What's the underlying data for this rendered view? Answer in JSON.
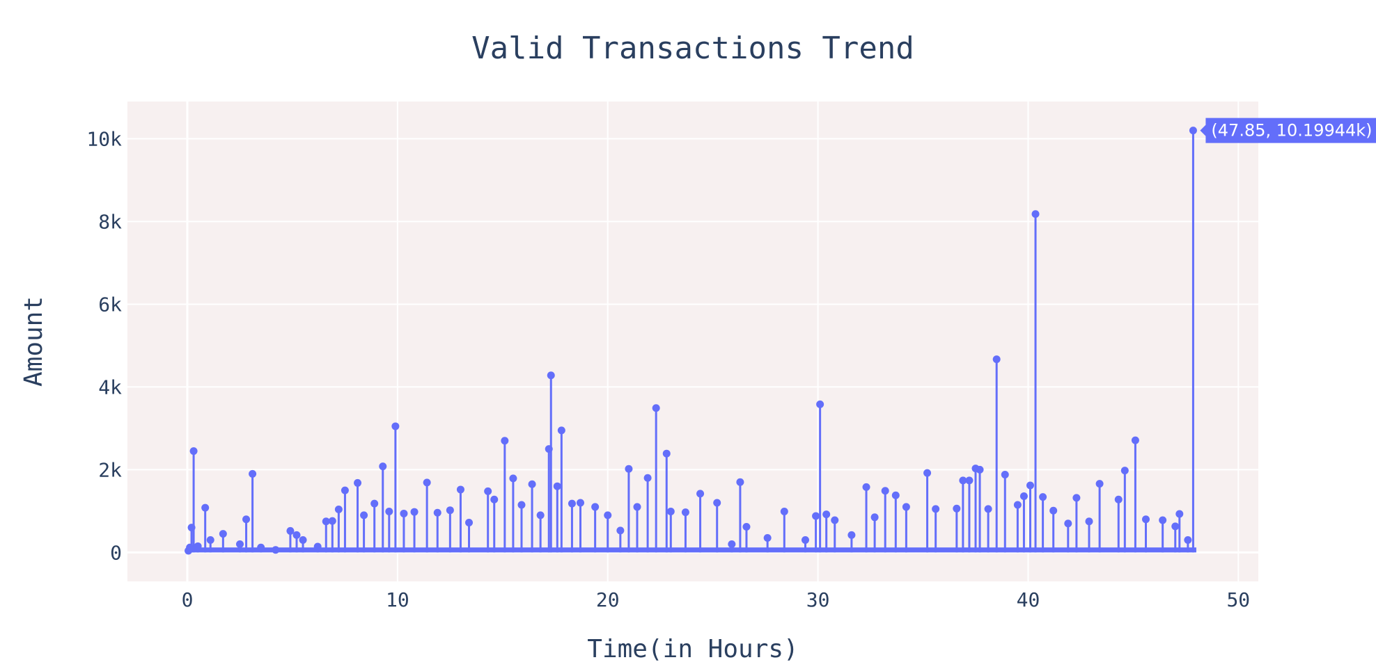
{
  "chart_data": {
    "type": "line",
    "title": "Valid Transactions Trend",
    "xlabel": "Time(in Hours)",
    "ylabel": "Amount",
    "xlim": [
      -2.85,
      50.95
    ],
    "ylim": [
      -700,
      10900
    ],
    "xticks": [
      0,
      10,
      20,
      30,
      40,
      50
    ],
    "xtick_labels": [
      "0",
      "10",
      "20",
      "30",
      "40",
      "50"
    ],
    "yticks": [
      0,
      2000,
      4000,
      6000,
      8000,
      10000
    ],
    "ytick_labels": [
      "0",
      "2k",
      "4k",
      "6k",
      "8k",
      "10k"
    ],
    "grid": true,
    "mode": "lines+markers",
    "series": [
      {
        "color": "#636efa",
        "peaks": [
          [
            0.05,
            40
          ],
          [
            0.12,
            120
          ],
          [
            0.2,
            600
          ],
          [
            0.3,
            2450
          ],
          [
            0.5,
            150
          ],
          [
            0.85,
            1080
          ],
          [
            1.1,
            300
          ],
          [
            1.7,
            450
          ],
          [
            2.5,
            200
          ],
          [
            2.8,
            800
          ],
          [
            3.1,
            1900
          ],
          [
            3.5,
            120
          ],
          [
            4.2,
            60
          ],
          [
            4.9,
            520
          ],
          [
            5.2,
            420
          ],
          [
            5.5,
            300
          ],
          [
            6.2,
            140
          ],
          [
            6.6,
            750
          ],
          [
            6.9,
            760
          ],
          [
            7.2,
            1040
          ],
          [
            7.5,
            1500
          ],
          [
            8.1,
            1680
          ],
          [
            8.4,
            900
          ],
          [
            8.9,
            1180
          ],
          [
            9.3,
            2080
          ],
          [
            9.6,
            990
          ],
          [
            9.9,
            3050
          ],
          [
            10.3,
            940
          ],
          [
            10.8,
            980
          ],
          [
            11.4,
            1690
          ],
          [
            11.9,
            960
          ],
          [
            12.5,
            1020
          ],
          [
            13.0,
            1520
          ],
          [
            13.4,
            720
          ],
          [
            14.3,
            1480
          ],
          [
            14.6,
            1280
          ],
          [
            15.1,
            2700
          ],
          [
            15.5,
            1790
          ],
          [
            15.9,
            1150
          ],
          [
            16.4,
            1650
          ],
          [
            16.8,
            900
          ],
          [
            17.2,
            2500
          ],
          [
            17.3,
            4280
          ],
          [
            17.6,
            1600
          ],
          [
            17.8,
            2950
          ],
          [
            18.3,
            1180
          ],
          [
            18.7,
            1200
          ],
          [
            19.4,
            1100
          ],
          [
            20.0,
            900
          ],
          [
            20.6,
            530
          ],
          [
            21.0,
            2020
          ],
          [
            21.4,
            1100
          ],
          [
            21.9,
            1800
          ],
          [
            22.3,
            3490
          ],
          [
            22.8,
            2390
          ],
          [
            23.0,
            990
          ],
          [
            23.7,
            970
          ],
          [
            24.4,
            1420
          ],
          [
            25.2,
            1200
          ],
          [
            25.9,
            200
          ],
          [
            26.3,
            1700
          ],
          [
            26.6,
            620
          ],
          [
            27.6,
            350
          ],
          [
            28.4,
            990
          ],
          [
            29.4,
            300
          ],
          [
            29.9,
            880
          ],
          [
            30.1,
            3580
          ],
          [
            30.4,
            920
          ],
          [
            30.8,
            780
          ],
          [
            31.6,
            420
          ],
          [
            32.3,
            1580
          ],
          [
            32.7,
            850
          ],
          [
            33.2,
            1490
          ],
          [
            33.7,
            1380
          ],
          [
            34.2,
            1100
          ],
          [
            35.2,
            1920
          ],
          [
            35.6,
            1050
          ],
          [
            36.6,
            1060
          ],
          [
            36.9,
            1740
          ],
          [
            37.2,
            1740
          ],
          [
            37.5,
            2030
          ],
          [
            37.7,
            2000
          ],
          [
            38.1,
            1050
          ],
          [
            38.5,
            4670
          ],
          [
            38.9,
            1880
          ],
          [
            39.5,
            1150
          ],
          [
            39.8,
            1360
          ],
          [
            40.1,
            1620
          ],
          [
            40.35,
            8180
          ],
          [
            40.7,
            1340
          ],
          [
            41.2,
            1010
          ],
          [
            41.9,
            700
          ],
          [
            42.3,
            1320
          ],
          [
            42.9,
            750
          ],
          [
            43.4,
            1660
          ],
          [
            44.3,
            1280
          ],
          [
            44.6,
            1980
          ],
          [
            45.1,
            2710
          ],
          [
            45.6,
            800
          ],
          [
            46.4,
            780
          ],
          [
            47.0,
            630
          ],
          [
            47.2,
            930
          ],
          [
            47.6,
            300
          ],
          [
            47.85,
            10199.44
          ]
        ]
      }
    ],
    "hover_label": "(47.85, 10.19944k)"
  }
}
